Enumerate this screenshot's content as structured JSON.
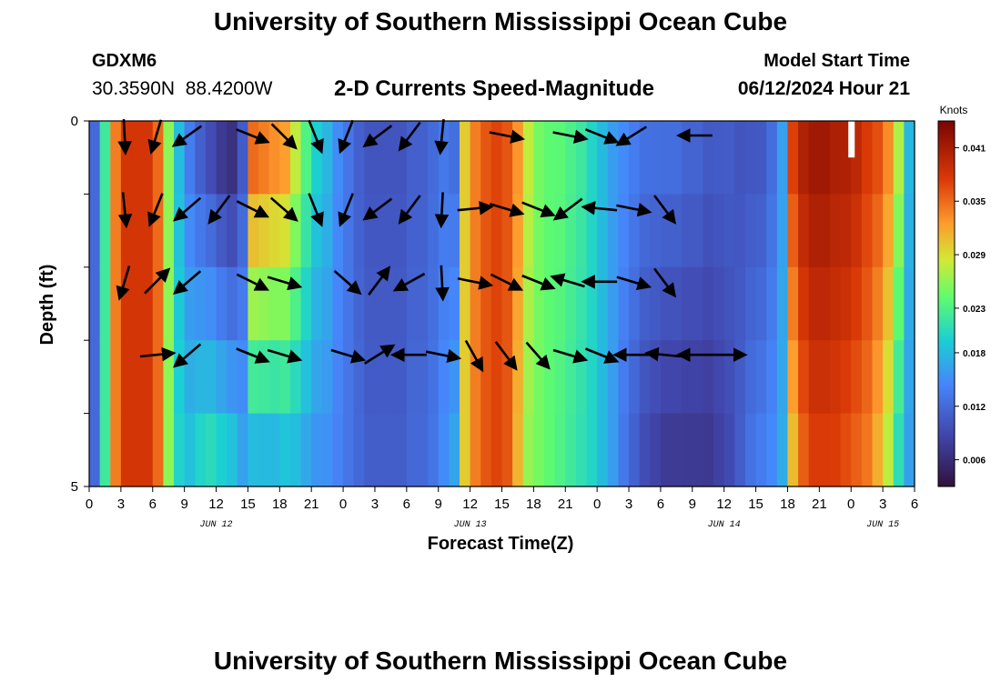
{
  "header": {
    "title": "University of Southern Mississippi Ocean Cube",
    "station_id": "GDXM6",
    "station_coords": "30.3590N  88.4200W",
    "plot_title": "2-D Currents Speed-Magnitude",
    "model_start_label": "Model Start Time",
    "model_start_value": "06/12/2024 Hour 21"
  },
  "footer": {
    "title": "University of Southern Mississippi Ocean Cube"
  },
  "chart_data": {
    "type": "heatmap",
    "xlabel": "Forecast Time(Z)",
    "ylabel": "Depth (ft)",
    "x_tick_labels": [
      "0",
      "3",
      "6",
      "9",
      "12",
      "15",
      "18",
      "21",
      "0",
      "3",
      "6",
      "9",
      "12",
      "15",
      "18",
      "21",
      "0",
      "3",
      "6",
      "9",
      "12",
      "15",
      "18",
      "21",
      "0",
      "3",
      "6"
    ],
    "date_labels": [
      {
        "label": "JUN 12",
        "hour": 12
      },
      {
        "label": "JUN 13",
        "hour": 36
      },
      {
        "label": "JUN 14",
        "hour": 60
      },
      {
        "label": "JUN 15",
        "hour": 75
      }
    ],
    "x_range_hours": [
      0,
      78
    ],
    "y_tick_labels": [
      "0",
      "5"
    ],
    "ylim": [
      0,
      5
    ],
    "depth_levels": [
      0,
      1,
      2,
      3,
      4,
      5
    ],
    "colorbar": {
      "label": "Knots",
      "ticks": [
        0.006,
        0.012,
        0.018,
        0.023,
        0.029,
        0.035,
        0.041
      ],
      "tick_labels": [
        "0.006",
        "0.012",
        "0.018",
        "0.023",
        "0.029",
        "0.035",
        "0.041"
      ],
      "range": [
        0.003,
        0.044
      ]
    },
    "speed_profile_top_by_hour": [
      0.012,
      0.022,
      0.034,
      0.038,
      0.038,
      0.038,
      0.035,
      0.026,
      0.018,
      0.013,
      0.01,
      0.008,
      0.006,
      0.005,
      0.01,
      0.037,
      0.036,
      0.035,
      0.034,
      0.029,
      0.024,
      0.02,
      0.018,
      0.015,
      0.013,
      0.011,
      0.01,
      0.01,
      0.01,
      0.01,
      0.011,
      0.011,
      0.012,
      0.013,
      0.012,
      0.03,
      0.034,
      0.036,
      0.037,
      0.036,
      0.033,
      0.028,
      0.025,
      0.024,
      0.024,
      0.023,
      0.022,
      0.02,
      0.018,
      0.016,
      0.015,
      0.014,
      0.013,
      0.013,
      0.013,
      0.013,
      0.012,
      0.012,
      0.011,
      0.011,
      0.011,
      0.01,
      0.01,
      0.01,
      0.012,
      0.016,
      0.038,
      0.041,
      0.042,
      0.042,
      0.041,
      0.041,
      0.04,
      0.038,
      0.037,
      0.034,
      0.028,
      0.018,
      0.01
    ],
    "speed_profile_bottom_by_hour": [
      0.012,
      0.022,
      0.034,
      0.038,
      0.038,
      0.038,
      0.035,
      0.026,
      0.02,
      0.019,
      0.021,
      0.022,
      0.021,
      0.02,
      0.017,
      0.016,
      0.016,
      0.016,
      0.017,
      0.017,
      0.016,
      0.015,
      0.015,
      0.014,
      0.013,
      0.012,
      0.011,
      0.011,
      0.011,
      0.011,
      0.012,
      0.012,
      0.013,
      0.015,
      0.017,
      0.03,
      0.034,
      0.036,
      0.037,
      0.036,
      0.031,
      0.026,
      0.025,
      0.024,
      0.023,
      0.022,
      0.021,
      0.02,
      0.018,
      0.016,
      0.013,
      0.011,
      0.009,
      0.008,
      0.007,
      0.007,
      0.007,
      0.007,
      0.007,
      0.008,
      0.009,
      0.011,
      0.013,
      0.014,
      0.015,
      0.017,
      0.03,
      0.035,
      0.037,
      0.037,
      0.037,
      0.036,
      0.035,
      0.034,
      0.031,
      0.027,
      0.02,
      0.016,
      0.01
    ],
    "vectors": [
      {
        "hour": 3,
        "depth": 0,
        "u": 0.05,
        "v": -1
      },
      {
        "hour": 6,
        "depth": 0,
        "u": -0.3,
        "v": -1
      },
      {
        "hour": 9,
        "depth": 0,
        "u": -0.7,
        "v": -0.5
      },
      {
        "hour": 15,
        "depth": 0,
        "u": 1,
        "v": -0.4
      },
      {
        "hour": 18,
        "depth": 0,
        "u": 0.7,
        "v": -0.7
      },
      {
        "hour": 21,
        "depth": 0,
        "u": 0.4,
        "v": -1
      },
      {
        "hour": 24,
        "depth": 0,
        "u": -0.4,
        "v": -1
      },
      {
        "hour": 27,
        "depth": 0,
        "u": -0.8,
        "v": -0.6
      },
      {
        "hour": 30,
        "depth": 0,
        "u": -0.6,
        "v": -0.8
      },
      {
        "hour": 33,
        "depth": 0,
        "u": -0.1,
        "v": -1
      },
      {
        "hour": 39,
        "depth": 0,
        "u": 1,
        "v": -0.2
      },
      {
        "hour": 45,
        "depth": 0,
        "u": 1,
        "v": -0.2
      },
      {
        "hour": 48,
        "depth": 0,
        "u": 1,
        "v": -0.4
      },
      {
        "hour": 51,
        "depth": 0,
        "u": -0.8,
        "v": -0.5
      },
      {
        "hour": 57,
        "depth": 0,
        "u": -1,
        "v": 0
      },
      {
        "hour": 3,
        "depth": 1,
        "u": 0.1,
        "v": -1
      },
      {
        "hour": 6,
        "depth": 1,
        "u": -0.4,
        "v": -1
      },
      {
        "hour": 9,
        "depth": 1,
        "u": -0.7,
        "v": -0.6
      },
      {
        "hour": 12,
        "depth": 1,
        "u": -0.6,
        "v": -0.8
      },
      {
        "hour": 15,
        "depth": 1,
        "u": 1,
        "v": -0.5
      },
      {
        "hour": 18,
        "depth": 1,
        "u": 0.8,
        "v": -0.7
      },
      {
        "hour": 21,
        "depth": 1,
        "u": 0.4,
        "v": -1
      },
      {
        "hour": 24,
        "depth": 1,
        "u": -0.4,
        "v": -1
      },
      {
        "hour": 27,
        "depth": 1,
        "u": -0.8,
        "v": -0.6
      },
      {
        "hour": 30,
        "depth": 1,
        "u": -0.6,
        "v": -0.8
      },
      {
        "hour": 33,
        "depth": 1,
        "u": -0.05,
        "v": -1
      },
      {
        "hour": 36,
        "depth": 1,
        "u": 1,
        "v": 0.1
      },
      {
        "hour": 39,
        "depth": 1,
        "u": 1,
        "v": -0.3
      },
      {
        "hour": 42,
        "depth": 1,
        "u": 1,
        "v": -0.4
      },
      {
        "hour": 45,
        "depth": 1,
        "u": -0.8,
        "v": -0.6
      },
      {
        "hour": 48,
        "depth": 1,
        "u": -1,
        "v": 0.1
      },
      {
        "hour": 51,
        "depth": 1,
        "u": 1,
        "v": -0.2
      },
      {
        "hour": 54,
        "depth": 1,
        "u": 0.6,
        "v": -0.8
      },
      {
        "hour": 3,
        "depth": 2,
        "u": -0.3,
        "v": -1
      },
      {
        "hour": 6,
        "depth": 2,
        "u": 0.7,
        "v": 0.7
      },
      {
        "hour": 9,
        "depth": 2,
        "u": -0.7,
        "v": -0.6
      },
      {
        "hour": 15,
        "depth": 2,
        "u": 1,
        "v": -0.5
      },
      {
        "hour": 18,
        "depth": 2,
        "u": 1,
        "v": -0.3
      },
      {
        "hour": 24,
        "depth": 2,
        "u": 0.8,
        "v": -0.7
      },
      {
        "hour": 27,
        "depth": 2,
        "u": 0.6,
        "v": 0.8
      },
      {
        "hour": 30,
        "depth": 2,
        "u": -0.9,
        "v": -0.5
      },
      {
        "hour": 33,
        "depth": 2,
        "u": 0.05,
        "v": -1
      },
      {
        "hour": 36,
        "depth": 2,
        "u": 1,
        "v": -0.2
      },
      {
        "hour": 39,
        "depth": 2,
        "u": 1,
        "v": -0.5
      },
      {
        "hour": 42,
        "depth": 2,
        "u": 1,
        "v": -0.4
      },
      {
        "hour": 45,
        "depth": 2,
        "u": -1,
        "v": 0.3
      },
      {
        "hour": 48,
        "depth": 2,
        "u": -1,
        "v": 0
      },
      {
        "hour": 51,
        "depth": 2,
        "u": 1,
        "v": -0.3
      },
      {
        "hour": 54,
        "depth": 2,
        "u": 0.6,
        "v": -0.8
      },
      {
        "hour": 6,
        "depth": 3,
        "u": 1,
        "v": 0.1
      },
      {
        "hour": 9,
        "depth": 3,
        "u": -0.7,
        "v": -0.6
      },
      {
        "hour": 15,
        "depth": 3,
        "u": 1,
        "v": -0.4
      },
      {
        "hour": 18,
        "depth": 3,
        "u": 1,
        "v": -0.3
      },
      {
        "hour": 24,
        "depth": 3,
        "u": 1,
        "v": -0.3
      },
      {
        "hour": 27,
        "depth": 3,
        "u": 0.8,
        "v": 0.5
      },
      {
        "hour": 30,
        "depth": 3,
        "u": -1,
        "v": 0
      },
      {
        "hour": 33,
        "depth": 3,
        "u": 1,
        "v": -0.2
      },
      {
        "hour": 36,
        "depth": 3,
        "u": 0.5,
        "v": -0.9
      },
      {
        "hour": 39,
        "depth": 3,
        "u": 0.6,
        "v": -0.8
      },
      {
        "hour": 42,
        "depth": 3,
        "u": 0.7,
        "v": -0.8
      },
      {
        "hour": 45,
        "depth": 3,
        "u": 1,
        "v": -0.3
      },
      {
        "hour": 48,
        "depth": 3,
        "u": 1,
        "v": -0.4
      },
      {
        "hour": 51,
        "depth": 3,
        "u": -1,
        "v": 0
      },
      {
        "hour": 54,
        "depth": 3,
        "u": -1,
        "v": 0.1
      },
      {
        "hour": 57,
        "depth": 3,
        "u": -1,
        "v": 0
      },
      {
        "hour": 60,
        "depth": 3,
        "u": 1,
        "v": 0
      }
    ]
  }
}
